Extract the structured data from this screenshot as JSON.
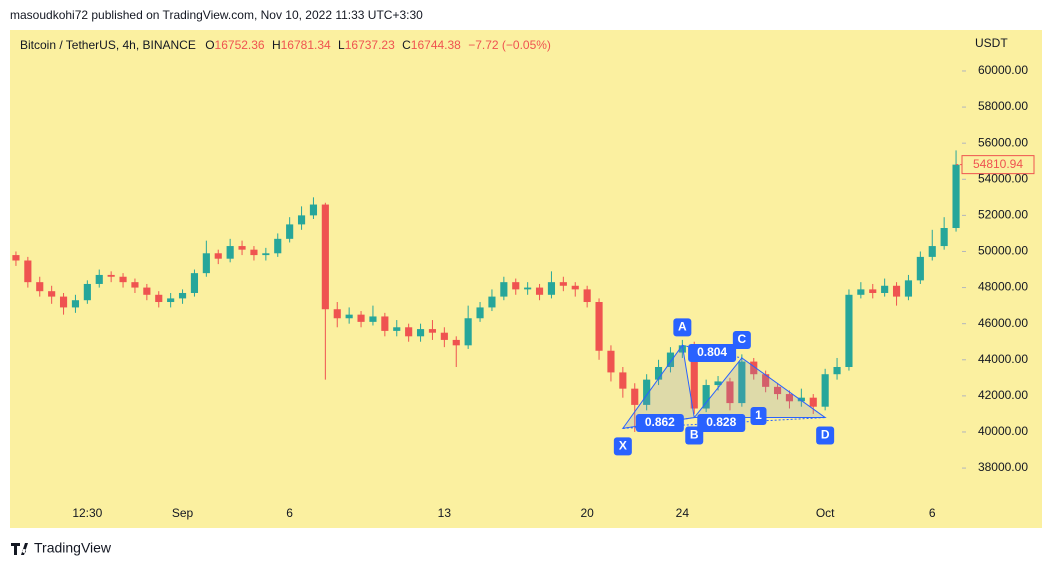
{
  "header": {
    "published": "masoudkohi72 published on TradingView.com, Nov 10, 2022 11:33 UTC+3:30"
  },
  "chart_data": {
    "type": "candlestick",
    "symbol": "Bitcoin / TetherUS, 4h, BINANCE",
    "ohlc_legend": {
      "o_label": "O",
      "o": 16752.36,
      "h_label": "H",
      "h": 16781.34,
      "l_label": "L",
      "l": 16737.23,
      "c_label": "C",
      "c": 16744.38,
      "change": "−7.72 (−0.05%)"
    },
    "currency": "USDT",
    "up_color": "#26a69a",
    "down_color": "#ef5350",
    "categories": [
      null,
      null,
      null,
      null,
      null,
      null,
      "12:30",
      null,
      null,
      null,
      null,
      null,
      null,
      null,
      "Sep",
      null,
      null,
      null,
      null,
      null,
      null,
      null,
      null,
      "6",
      null,
      null,
      null,
      null,
      null,
      null,
      null,
      null,
      null,
      null,
      null,
      null,
      "13",
      null,
      null,
      null,
      null,
      null,
      null,
      null,
      null,
      null,
      null,
      null,
      "20",
      null,
      null,
      null,
      null,
      null,
      null,
      null,
      "24",
      null,
      null,
      null,
      null,
      null,
      null,
      null,
      null,
      null,
      null,
      null,
      "Oct",
      null,
      null,
      null,
      null,
      null,
      null,
      null,
      null,
      "6",
      null,
      null
    ],
    "open": [
      49800,
      49500,
      48300,
      47800,
      47500,
      46900,
      47300,
      48200,
      48700,
      48600,
      48300,
      48000,
      47600,
      47200,
      47400,
      47700,
      48800,
      49900,
      49600,
      50300,
      50100,
      49800,
      49900,
      50700,
      51500,
      52000,
      52600,
      46800,
      46300,
      46500,
      46100,
      46400,
      45600,
      45800,
      45300,
      45700,
      45500,
      45100,
      44800,
      46300,
      46900,
      47500,
      48300,
      47900,
      48000,
      47600,
      48300,
      48100,
      47900,
      47200,
      44500,
      43300,
      42400,
      41500,
      42900,
      43600,
      44400,
      44800,
      41300,
      42600,
      42800,
      41600,
      43900,
      43200,
      42500,
      42100,
      41700,
      41900,
      41400,
      43200,
      43600,
      47600,
      47900,
      47700,
      48100,
      47500,
      48400,
      49700,
      50300,
      51300
    ],
    "high": [
      50000,
      49700,
      48600,
      48100,
      47700,
      47600,
      48400,
      49000,
      48900,
      48800,
      48500,
      48200,
      47800,
      47700,
      47900,
      49000,
      50600,
      50100,
      50700,
      50600,
      50300,
      50200,
      51000,
      51900,
      52500,
      53000,
      52700,
      47200,
      46900,
      46700,
      47000,
      46600,
      46200,
      46000,
      46000,
      46200,
      45800,
      45300,
      47000,
      47200,
      47900,
      48600,
      48500,
      48300,
      48200,
      48900,
      48600,
      48300,
      48100,
      47400,
      44800,
      43600,
      42700,
      43200,
      44000,
      44700,
      45100,
      45000,
      42900,
      43100,
      43000,
      44300,
      44100,
      43400,
      42700,
      42300,
      42400,
      42100,
      43500,
      44100,
      47900,
      48300,
      48200,
      48500,
      48300,
      48700,
      50000,
      51200,
      51900,
      55600
    ],
    "low": [
      49200,
      48000,
      47500,
      47100,
      46500,
      46600,
      47100,
      48000,
      48300,
      48000,
      47700,
      47300,
      46900,
      46900,
      47100,
      47500,
      48600,
      49300,
      49400,
      49800,
      49500,
      49500,
      49700,
      50500,
      51200,
      51800,
      42900,
      45800,
      46000,
      45800,
      45900,
      45300,
      45300,
      45000,
      45000,
      45100,
      44700,
      43600,
      44600,
      46100,
      46700,
      47300,
      47600,
      47600,
      47300,
      47400,
      47800,
      47500,
      46900,
      44000,
      42800,
      41900,
      40000,
      41200,
      42600,
      43300,
      44100,
      41000,
      41100,
      42300,
      41200,
      41400,
      42900,
      42200,
      41800,
      41300,
      41400,
      41000,
      41200,
      42900,
      43400,
      47400,
      47400,
      47500,
      47000,
      47300,
      48200,
      49500,
      50100,
      51100
    ],
    "close": [
      49500,
      48300,
      47800,
      47500,
      46900,
      47300,
      48200,
      48700,
      48600,
      48300,
      48000,
      47600,
      47200,
      47400,
      47700,
      48800,
      49900,
      49600,
      50300,
      50100,
      49800,
      49900,
      50700,
      51500,
      52000,
      52600,
      46800,
      46300,
      46500,
      46100,
      46400,
      45600,
      45800,
      45300,
      45700,
      45500,
      45100,
      44800,
      46300,
      46900,
      47500,
      48300,
      47900,
      48000,
      47600,
      48300,
      48100,
      47900,
      47200,
      44500,
      43300,
      42400,
      41500,
      42900,
      43600,
      44400,
      44800,
      41300,
      42600,
      42800,
      41600,
      43900,
      43200,
      42500,
      42100,
      41700,
      41900,
      41400,
      43200,
      43600,
      47600,
      47900,
      47700,
      48100,
      47500,
      48400,
      49700,
      50300,
      51300,
      54810.94
    ],
    "ylim": [
      34680,
      62270
    ],
    "yticks": [
      {
        "value": 38000,
        "label": "38000.00"
      },
      {
        "value": 40000,
        "label": "40000.00"
      },
      {
        "value": 42000,
        "label": "42000.00"
      },
      {
        "value": 44000,
        "label": "44000.00"
      },
      {
        "value": 46000,
        "label": "46000.00"
      },
      {
        "value": 48000,
        "label": "48000.00"
      },
      {
        "value": 50000,
        "label": "50000.00"
      },
      {
        "value": 52000,
        "label": "52000.00"
      },
      {
        "value": 54000,
        "label": "54000.00"
      },
      {
        "value": 56000,
        "label": "56000.00"
      },
      {
        "value": 58000,
        "label": "58000.00"
      },
      {
        "value": 60000,
        "label": "60000.00"
      }
    ],
    "pattern": {
      "color": "#2962ff",
      "points": [
        {
          "label": "X",
          "index": 51,
          "price": 40200
        },
        {
          "label": "A",
          "index": 56,
          "price": 44800
        },
        {
          "label": "B",
          "index": 57,
          "price": 40800
        },
        {
          "label": "C",
          "index": 61,
          "price": 44100
        },
        {
          "label": "D",
          "index": 68,
          "price": 40800
        }
      ],
      "ratios": [
        0.862,
        0.804,
        0.828,
        1
      ]
    }
  },
  "footer": {
    "brand": "TradingView"
  }
}
